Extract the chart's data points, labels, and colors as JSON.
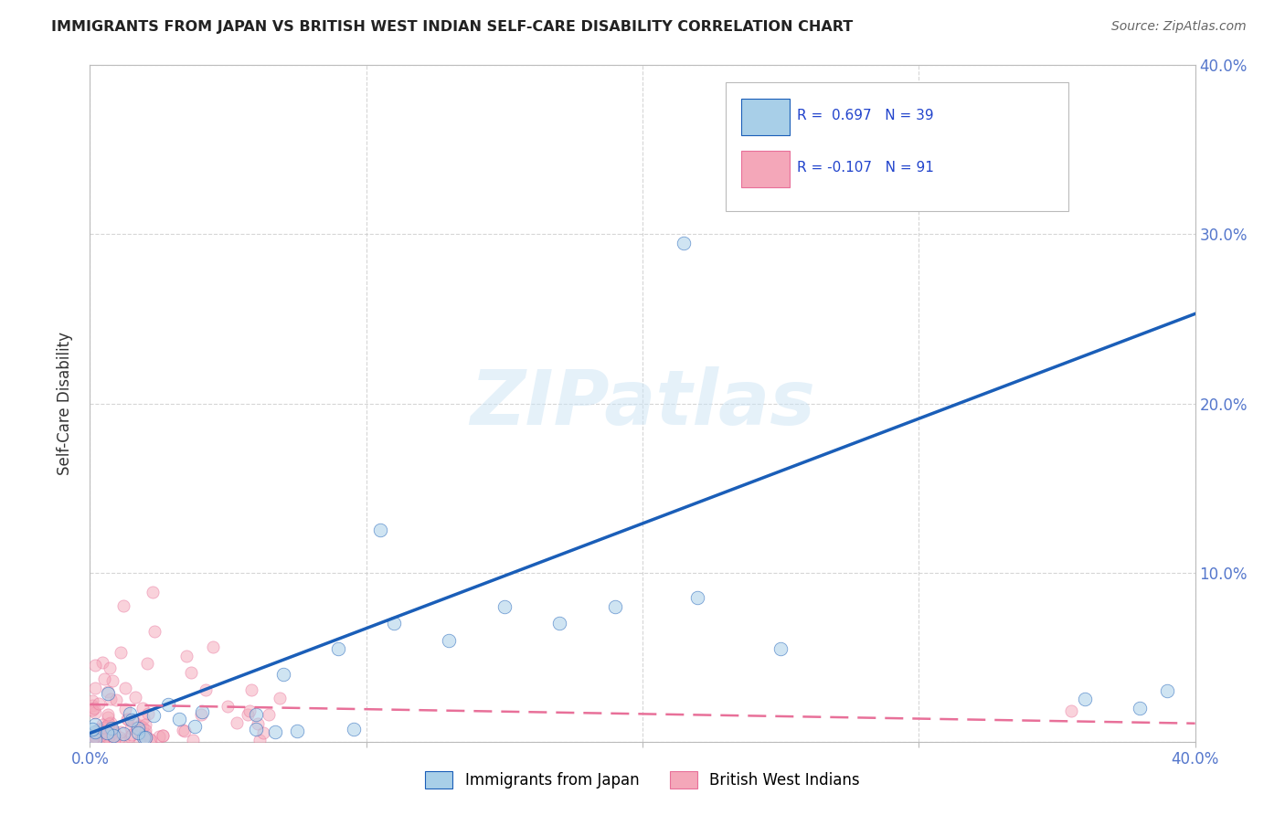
{
  "title": "IMMIGRANTS FROM JAPAN VS BRITISH WEST INDIAN SELF-CARE DISABILITY CORRELATION CHART",
  "source": "Source: ZipAtlas.com",
  "ylabel": "Self-Care Disability",
  "xlim": [
    0.0,
    0.4
  ],
  "ylim": [
    0.0,
    0.4
  ],
  "xticks": [
    0.0,
    0.1,
    0.2,
    0.3,
    0.4
  ],
  "yticks": [
    0.0,
    0.1,
    0.2,
    0.3,
    0.4
  ],
  "xticklabels": [
    "0.0%",
    "",
    "",
    "",
    "40.0%"
  ],
  "yticklabels_right": [
    "",
    "10.0%",
    "20.0%",
    "30.0%",
    "40.0%"
  ],
  "legend_r1": "R =  0.697",
  "legend_n1": "N = 39",
  "legend_r2": "R = -0.107",
  "legend_n2": "N = 91",
  "watermark": "ZIPatlas",
  "blue_scatter_color": "#a8cfe8",
  "pink_scatter_color": "#f4a7b9",
  "blue_line_color": "#1a5eb8",
  "pink_line_color": "#e87099",
  "background_color": "#ffffff",
  "grid_color": "#cccccc",
  "tick_color": "#5577cc",
  "title_color": "#222222",
  "source_color": "#666666",
  "legend_text_color": "#2244cc"
}
